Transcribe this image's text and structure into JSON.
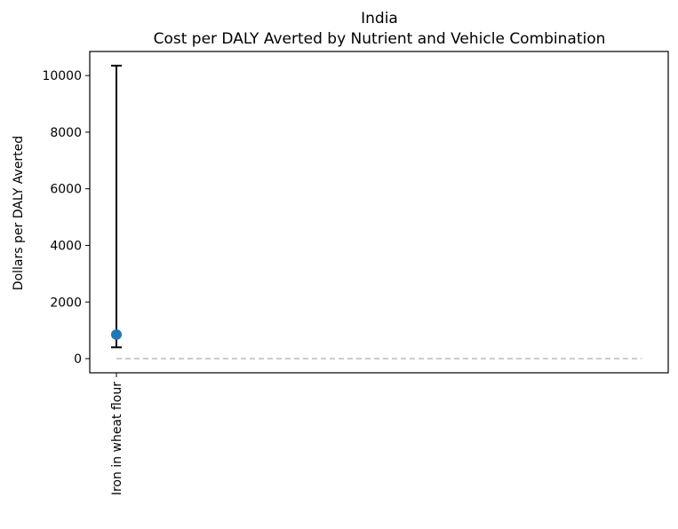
{
  "chart_data": {
    "type": "scatter",
    "title": "India",
    "subtitle": "Cost per DALY Averted by Nutrient and Vehicle Combination",
    "xlabel": "",
    "ylabel": "Dollars per DALY Averted",
    "categories": [
      "Iron in wheat flour"
    ],
    "points": [
      {
        "category": "Iron in wheat flour",
        "value": 850,
        "lower": 400,
        "upper": 10350
      }
    ],
    "reference_line": {
      "y": 0,
      "style": "dashed",
      "color": "#c0c0c0"
    },
    "ylim": [
      -500,
      10850
    ],
    "yticks": [
      0,
      2000,
      4000,
      6000,
      8000,
      10000
    ],
    "grid": false,
    "colors": {
      "point": "#1f77b4",
      "errorbar": "#000000",
      "axes": "#000000"
    }
  }
}
